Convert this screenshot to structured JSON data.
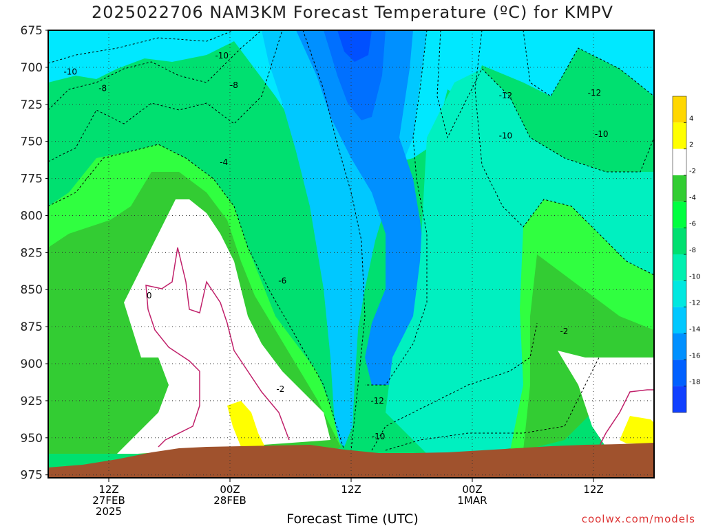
{
  "chart_data": {
    "type": "heatmap",
    "title": "2025022706 NAM3KM Forecast Temperature (ºC) for KMPV",
    "xlabel": "Forecast Time (UTC)",
    "ylabel": "",
    "y_ticks": [
      "675",
      "700",
      "725",
      "750",
      "775",
      "800",
      "825",
      "850",
      "875",
      "900",
      "925",
      "950",
      "975"
    ],
    "y_tick_values": [
      675,
      700,
      725,
      750,
      775,
      800,
      825,
      850,
      875,
      900,
      925,
      950,
      975
    ],
    "ylim": [
      675,
      977
    ],
    "y_reversed": true,
    "x_ticks": [
      {
        "hours": 6,
        "lines": [
          "12Z",
          "27FEB",
          "2025"
        ]
      },
      {
        "hours": 18,
        "lines": [
          "00Z",
          "28FEB"
        ]
      },
      {
        "hours": 30,
        "lines": [
          "12Z"
        ]
      },
      {
        "hours": 42,
        "lines": [
          "00Z",
          "1MAR"
        ]
      },
      {
        "hours": 54,
        "lines": [
          "12Z"
        ]
      }
    ],
    "xlim": [
      0,
      60
    ],
    "grid": true,
    "colorbar": {
      "labels": [
        "4",
        "2",
        "-2",
        "-4",
        "-6",
        "-8",
        "-10",
        "-12",
        "-14",
        "-16",
        "-18"
      ],
      "colors": [
        "#ffd700",
        "#ffff00",
        "#ffffff",
        "#32cd32",
        "#00ff40",
        "#00e070",
        "#00f0b0",
        "#00e8e0",
        "#00c8ff",
        "#0090ff",
        "#0060ff",
        "#1040ff"
      ]
    },
    "contour_labels": [
      {
        "text": "-10",
        "hours": 2.2,
        "p": 705
      },
      {
        "text": "-8",
        "hours": 5.4,
        "p": 716
      },
      {
        "text": "-10",
        "hours": 17.2,
        "p": 694
      },
      {
        "text": "-8",
        "hours": 18.4,
        "p": 714
      },
      {
        "text": "-4",
        "hours": 17.4,
        "p": 766
      },
      {
        "text": "-6",
        "hours": 23.2,
        "p": 846
      },
      {
        "text": "0",
        "hours": 10,
        "p": 856
      },
      {
        "text": "-2",
        "hours": 23,
        "p": 919
      },
      {
        "text": "-12",
        "hours": 32.6,
        "p": 927
      },
      {
        "text": "-10",
        "hours": 32.7,
        "p": 951
      },
      {
        "text": "-12",
        "hours": 45.3,
        "p": 721
      },
      {
        "text": "-10",
        "hours": 45.3,
        "p": 748
      },
      {
        "text": "-12",
        "hours": 54.1,
        "p": 719
      },
      {
        "text": "-10",
        "hours": 54.8,
        "p": 747
      },
      {
        "text": "-2",
        "hours": 51.1,
        "p": 880
      }
    ],
    "terrain": {
      "color": "#a0522d"
    }
  },
  "watermark": "coolwx.com/models"
}
